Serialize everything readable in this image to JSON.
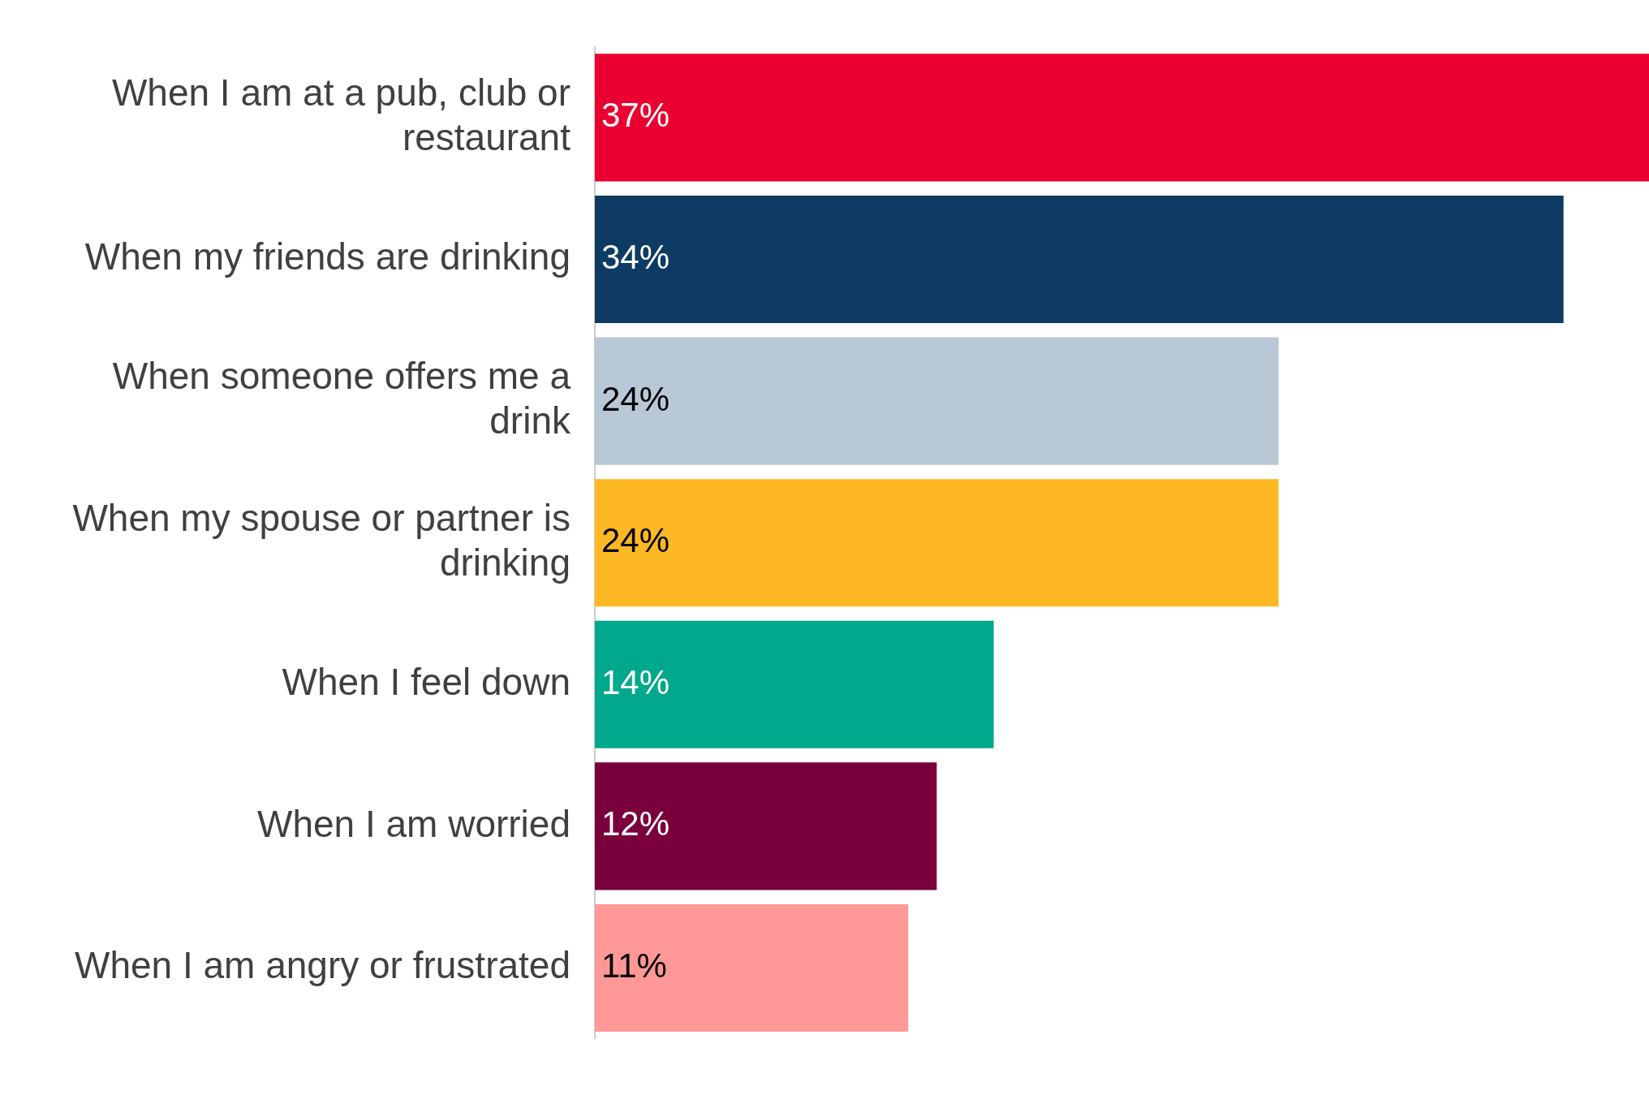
{
  "chart_data": {
    "type": "bar",
    "orientation": "horizontal",
    "categories": [
      "When I am at a pub, club or restaurant",
      "When my friends are drinking",
      "When someone offers me a drink",
      "When my spouse or partner is drinking",
      "When I feel down",
      "When I am worried",
      "When I am angry or frustrated"
    ],
    "values": [
      37,
      34,
      24,
      24,
      14,
      12,
      11
    ],
    "value_labels": [
      "37%",
      "34%",
      "24%",
      "24%",
      "14%",
      "12%",
      "11%"
    ],
    "colors": [
      "#e90030",
      "#0d3b63",
      "#b8c8d7",
      "#feb824",
      "#00a88c",
      "#7a003c",
      "#ff9896"
    ],
    "xlim": [
      0,
      37
    ],
    "grid": false,
    "legend": false,
    "tick_labels": "y"
  }
}
